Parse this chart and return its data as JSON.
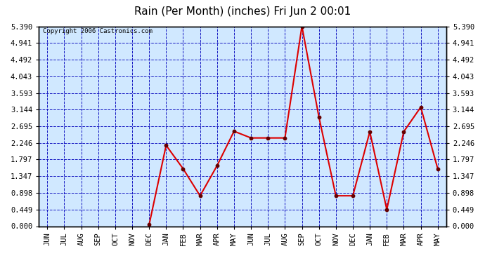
{
  "title": "Rain (Per Month) (inches) Fri Jun 2 00:01",
  "copyright_text": "Copyright 2006 Castronics.com",
  "months": [
    "JUN",
    "JUL",
    "AUG",
    "SEP",
    "OCT",
    "NOV",
    "DEC",
    "JAN",
    "FEB",
    "MAR",
    "APR",
    "MAY",
    "JUN",
    "JUL",
    "AUG",
    "SEP",
    "OCT",
    "NOV",
    "DEC",
    "JAN",
    "FEB",
    "MAR",
    "APR",
    "MAY"
  ],
  "values": [
    null,
    null,
    null,
    null,
    null,
    null,
    0.04,
    2.18,
    1.55,
    0.82,
    1.63,
    2.56,
    2.38,
    2.38,
    2.38,
    5.39,
    2.95,
    0.82,
    0.82,
    2.55,
    0.45,
    2.55,
    3.21,
    1.55
  ],
  "line_color": "#dd0000",
  "marker_color": "#660000",
  "bg_color": "#d0e8ff",
  "grid_color": "#0000bb",
  "yticks": [
    0.0,
    0.449,
    0.898,
    1.347,
    1.797,
    2.246,
    2.695,
    3.144,
    3.593,
    4.043,
    4.492,
    4.941,
    5.39
  ],
  "ylim": [
    0.0,
    5.39
  ],
  "title_fontsize": 11,
  "copyright_fontsize": 6.5,
  "tick_fontsize": 7.5
}
